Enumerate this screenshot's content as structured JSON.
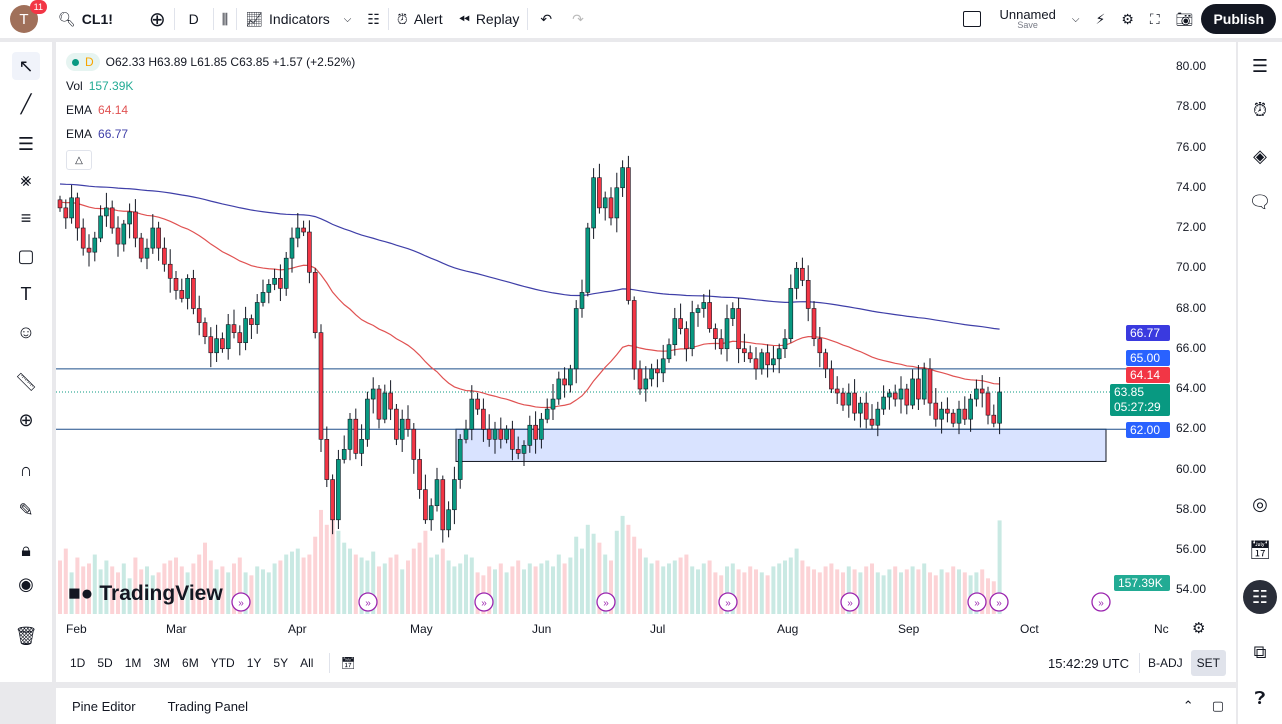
{
  "topbar": {
    "avatar": "T",
    "notifications": "11",
    "symbol": "CL1!",
    "interval": "D",
    "indicators": "Indicators",
    "alert": "Alert",
    "replay": "Replay",
    "layout_name": "Unnamed",
    "layout_sub": "Save",
    "publish": "Publish"
  },
  "legend": {
    "interval": "D",
    "ohlc": "O62.33 H63.89 L61.85 C63.85 +1.57 (+2.52%)",
    "vol_label": "Vol",
    "vol_value": "157.39K",
    "ema1_label": "EMA",
    "ema1_value": "64.14",
    "ema2_label": "EMA",
    "ema2_value": "66.77"
  },
  "colors": {
    "up": "#089981",
    "down": "#f23645",
    "ema_fast": "#e05252",
    "ema_slow": "#3f3fa8",
    "level": "#2962ff",
    "zone": "#cfdcff"
  },
  "price_axis": [
    "80.00",
    "78.00",
    "76.00",
    "74.00",
    "72.00",
    "70.00",
    "68.00",
    "66.00",
    "64.00",
    "62.00",
    "60.00",
    "58.00",
    "56.00",
    "54.00"
  ],
  "price_labels": {
    "ema_slow": "66.77",
    "level_high": "65.00",
    "ema_fast": "64.14",
    "last": "63.85",
    "countdown": "05:27:29",
    "level_low": "62.00",
    "volume": "157.39K"
  },
  "time_axis": [
    "Feb",
    "Mar",
    "Apr",
    "May",
    "Jun",
    "Jul",
    "Aug",
    "Sep",
    "Oct",
    "Nc"
  ],
  "watermark": "TradingView",
  "bottombar": {
    "ranges": [
      "1D",
      "5D",
      "1M",
      "3M",
      "6M",
      "YTD",
      "1Y",
      "5Y",
      "All"
    ],
    "time": "15:42:29 UTC",
    "badj": "B-ADJ",
    "set": "SET"
  },
  "bottompanel": {
    "pine": "Pine Editor",
    "trading": "Trading Panel"
  },
  "chart_data": {
    "type": "candlestick",
    "ylim": [
      54,
      80
    ],
    "levels": [
      65.0,
      62.0
    ],
    "zone": [
      60.4,
      62.0
    ],
    "closes": [
      73,
      72.5,
      73.5,
      72,
      71,
      70.8,
      71.5,
      72.6,
      73,
      72,
      71.2,
      72.2,
      72.8,
      71.5,
      70.5,
      71,
      72,
      71,
      70.2,
      69.5,
      68.9,
      68.5,
      69.5,
      68,
      67.3,
      66.6,
      65.8,
      66.5,
      66,
      67.2,
      66.8,
      66.3,
      67.5,
      67.2,
      68.3,
      68.8,
      69.2,
      69.5,
      69,
      70.5,
      71.5,
      72,
      71.8,
      69.8,
      66.8,
      61.5,
      59.5,
      57.5,
      60.5,
      61,
      62.5,
      60.8,
      61.5,
      63.5,
      64,
      62.5,
      63.8,
      63,
      61.5,
      62.5,
      62,
      60.5,
      59,
      57.5,
      58.2,
      59.5,
      57,
      58,
      59.5,
      61.5,
      62,
      63.5,
      63,
      62,
      61.5,
      62,
      61.5,
      62,
      61,
      60.8,
      61.2,
      62.2,
      61.5,
      62.5,
      63,
      63.5,
      64.5,
      64.2,
      65,
      68,
      68.8,
      72,
      74.5,
      73,
      73.5,
      72.5,
      74,
      75,
      68.4,
      65,
      64,
      64.5,
      65,
      64.8,
      65.5,
      66.2,
      67.5,
      67,
      66,
      67.8,
      68,
      68.3,
      67,
      66.5,
      66,
      67.5,
      68,
      66,
      65.8,
      65.5,
      65,
      65.8,
      65.2,
      65.5,
      66,
      66.5,
      69,
      70,
      69.4,
      68,
      66.5,
      65.8,
      65,
      64,
      63.8,
      63.2,
      63.8,
      62.8,
      63.3,
      62.5,
      62.2,
      63,
      63.6,
      63.8,
      63.5,
      64,
      63.2,
      64.5,
      63.5,
      65,
      63.3,
      62.5,
      63,
      62.8,
      62.3,
      63,
      62.5,
      63.5,
      64,
      63.8,
      62.7,
      62.3,
      63.85
    ],
    "volumes_k": [
      90,
      110,
      70,
      95,
      80,
      85,
      100,
      75,
      90,
      80,
      70,
      85,
      60,
      95,
      75,
      80,
      65,
      70,
      85,
      90,
      95,
      80,
      70,
      85,
      100,
      120,
      90,
      75,
      80,
      70,
      85,
      95,
      70,
      65,
      80,
      75,
      70,
      85,
      90,
      100,
      105,
      110,
      95,
      100,
      130,
      175,
      150,
      185,
      140,
      120,
      110,
      100,
      95,
      90,
      105,
      80,
      85,
      95,
      100,
      75,
      90,
      110,
      120,
      140,
      95,
      100,
      110,
      90,
      80,
      85,
      100,
      95,
      70,
      65,
      80,
      75,
      85,
      70,
      80,
      90,
      75,
      85,
      80,
      85,
      90,
      80,
      100,
      85,
      95,
      130,
      110,
      150,
      135,
      120,
      100,
      90,
      140,
      165,
      150,
      130,
      110,
      95,
      85,
      90,
      80,
      85,
      90,
      95,
      100,
      80,
      75,
      85,
      90,
      70,
      65,
      80,
      85,
      75,
      70,
      80,
      75,
      70,
      65,
      80,
      85,
      90,
      95,
      110,
      90,
      80,
      75,
      70,
      80,
      85,
      75,
      70,
      80,
      75,
      70,
      80,
      85,
      70,
      65,
      75,
      80,
      70,
      75,
      80,
      75,
      85,
      70,
      65,
      75,
      70,
      80,
      75,
      70,
      65,
      70,
      75,
      60,
      55,
      157.39
    ]
  }
}
